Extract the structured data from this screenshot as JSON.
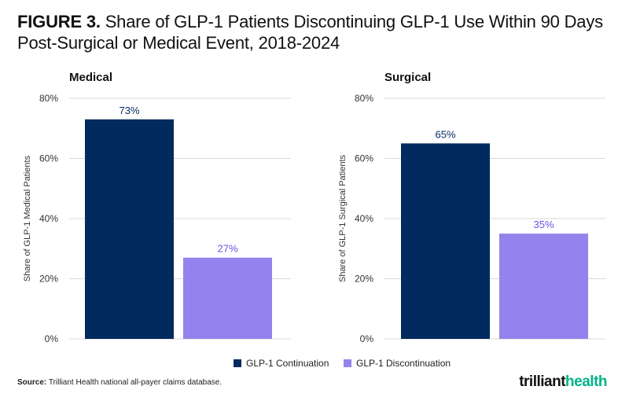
{
  "header": {
    "figure_label": "FIGURE 3.",
    "title": "Share of GLP-1 Patients Discontinuing GLP-1 Use Within 90 Days Post-Surgical or Medical Event, 2018-2024"
  },
  "colors": {
    "continuation": "#012a5e",
    "discontinuation": "#9483ec",
    "discontinuation_label": "#6b52e0",
    "grid": "#d9d9d9",
    "logo_accent": "#00b389"
  },
  "chart_data": [
    {
      "type": "bar",
      "title": "Medical",
      "ylabel": "Share of GLP-1  Medical Patients",
      "ylim": [
        0,
        80
      ],
      "yticks": [
        "0%",
        "20%",
        "40%",
        "60%",
        "80%"
      ],
      "categories": [
        "GLP-1 Continuation",
        "GLP-1 Discontinuation"
      ],
      "values": [
        73,
        27
      ],
      "data_labels": [
        "73%",
        "27%"
      ],
      "grid": true
    },
    {
      "type": "bar",
      "title": "Surgical",
      "ylabel": "Share of GLP-1  Surgical Patients",
      "ylim": [
        0,
        80
      ],
      "yticks": [
        "0%",
        "20%",
        "40%",
        "60%",
        "80%"
      ],
      "categories": [
        "GLP-1 Continuation",
        "GLP-1 Discontinuation"
      ],
      "values": [
        65,
        35
      ],
      "data_labels": [
        "65%",
        "35%"
      ],
      "grid": true
    }
  ],
  "legend": {
    "items": [
      "GLP-1 Continuation",
      "GLP-1 Discontinuation"
    ],
    "placement": "bottom-center"
  },
  "footer": {
    "source_label": "Source:",
    "source_text": "Trilliant Health national all-payer claims database.",
    "logo_main": "trilliant",
    "logo_accent": "health"
  }
}
